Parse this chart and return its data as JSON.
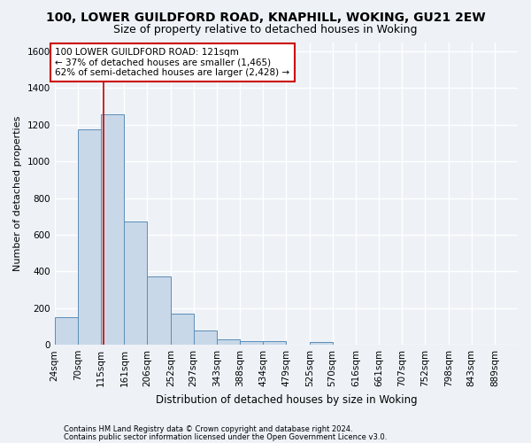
{
  "title": "100, LOWER GUILDFORD ROAD, KNAPHILL, WOKING, GU21 2EW",
  "subtitle": "Size of property relative to detached houses in Woking",
  "xlabel": "Distribution of detached houses by size in Woking",
  "ylabel": "Number of detached properties",
  "footer_line1": "Contains HM Land Registry data © Crown copyright and database right 2024.",
  "footer_line2": "Contains public sector information licensed under the Open Government Licence v3.0.",
  "property_label": "100 LOWER GUILDFORD ROAD: 121sqm",
  "annotation_line2": "← 37% of detached houses are smaller (1,465)",
  "annotation_line3": "62% of semi-detached houses are larger (2,428) →",
  "bar_edges": [
    24,
    70,
    115,
    161,
    206,
    252,
    297,
    343,
    388,
    434,
    479,
    525,
    570,
    616,
    661,
    707,
    752,
    798,
    843,
    889,
    934
  ],
  "bar_heights": [
    150,
    1175,
    1255,
    670,
    375,
    170,
    80,
    30,
    20,
    20,
    0,
    15,
    0,
    0,
    0,
    0,
    0,
    0,
    0,
    0
  ],
  "bar_color": "#c8d8e8",
  "bar_edge_color": "#5b8db8",
  "vline_color": "#cc0000",
  "vline_x": 121,
  "annotation_box_color": "#cc0000",
  "ylim": [
    0,
    1650
  ],
  "yticks": [
    0,
    200,
    400,
    600,
    800,
    1000,
    1200,
    1400,
    1600
  ],
  "background_color": "#eef2f7",
  "grid_color": "#ffffff",
  "title_fontsize": 10,
  "subtitle_fontsize": 9,
  "xlabel_fontsize": 8.5,
  "ylabel_fontsize": 8,
  "annotation_fontsize": 7.5,
  "tick_fontsize": 7.5,
  "footer_fontsize": 6
}
